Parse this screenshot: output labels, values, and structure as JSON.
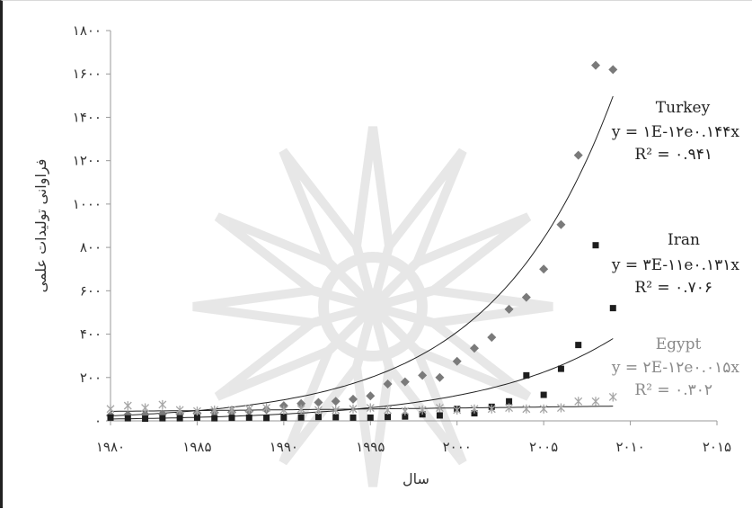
{
  "chart_data": {
    "type": "scatter",
    "xlabel": "سال",
    "ylabel": "فراوانی تولیدات علمی",
    "xlim": [
      1980,
      2015
    ],
    "ylim": [
      0,
      1800
    ],
    "x_ticks": [
      1980,
      1985,
      1990,
      1995,
      2000,
      2005,
      2010,
      2015
    ],
    "x_tick_labels": [
      "۱۹۸۰",
      "۱۹۸۵",
      "۱۹۹۰",
      "۱۹۹۵",
      "۲۰۰۰",
      "۲۰۰۵",
      "۲۰۱۰",
      "۲۰۱۵"
    ],
    "y_ticks": [
      0,
      200,
      400,
      600,
      800,
      1000,
      1200,
      1400,
      1600,
      1800
    ],
    "y_tick_labels": [
      "۰",
      "۲۰۰",
      "۴۰۰",
      "۶۰۰",
      "۸۰۰",
      "۱۰۰۰",
      "۱۲۰۰",
      "۱۴۰۰",
      "۱۶۰۰",
      "۱۸۰۰"
    ],
    "grid": false,
    "series": [
      {
        "name": "Turkey",
        "marker": "diamond",
        "color": "#7a7a7a",
        "x": [
          1980,
          1981,
          1982,
          1983,
          1984,
          1985,
          1986,
          1987,
          1988,
          1989,
          1990,
          1991,
          1992,
          1993,
          1994,
          1995,
          1996,
          1997,
          1998,
          1999,
          2000,
          2001,
          2002,
          2003,
          2004,
          2005,
          2006,
          2007,
          2008,
          2009
        ],
        "y": [
          25,
          28,
          30,
          32,
          33,
          35,
          38,
          40,
          45,
          52,
          70,
          80,
          85,
          90,
          100,
          115,
          170,
          180,
          210,
          200,
          275,
          335,
          385,
          515,
          570,
          700,
          905,
          1225,
          1640,
          1620
        ],
        "trend": {
          "a": 1e-12,
          "b": 0.144
        },
        "equation": "y = ۱E-۱۲e۰.۱۴۴x",
        "r2": "R² = ۰.۹۴۱"
      },
      {
        "name": "Iran",
        "marker": "square",
        "color": "#1e1e1e",
        "x": [
          1980,
          1981,
          1982,
          1983,
          1984,
          1985,
          1986,
          1987,
          1988,
          1989,
          1990,
          1991,
          1992,
          1993,
          1994,
          1995,
          1996,
          1997,
          1998,
          1999,
          2000,
          2001,
          2002,
          2003,
          2004,
          2005,
          2006,
          2007,
          2008,
          2009
        ],
        "y": [
          15,
          12,
          10,
          12,
          12,
          15,
          12,
          14,
          15,
          13,
          15,
          16,
          18,
          17,
          15,
          15,
          18,
          20,
          30,
          25,
          55,
          35,
          65,
          90,
          210,
          120,
          240,
          350,
          810,
          520
        ],
        "trend": {
          "a": 3e-11,
          "b": 0.131
        },
        "equation": "y = ۳E-۱۱e۰.۱۳۱x",
        "r2": "R² = ۰.۷۰۶"
      },
      {
        "name": "Egypt",
        "marker": "star",
        "color": "#a6a6a6",
        "x": [
          1980,
          1981,
          1982,
          1983,
          1984,
          1985,
          1986,
          1987,
          1988,
          1989,
          1990,
          1991,
          1992,
          1993,
          1994,
          1995,
          1996,
          1997,
          1998,
          1999,
          2000,
          2001,
          2002,
          2003,
          2004,
          2005,
          2006,
          2007,
          2008,
          2009
        ],
        "y": [
          55,
          70,
          60,
          75,
          50,
          45,
          50,
          50,
          55,
          60,
          50,
          55,
          50,
          50,
          55,
          60,
          50,
          45,
          50,
          60,
          50,
          55,
          55,
          60,
          55,
          55,
          60,
          90,
          90,
          110
        ],
        "trend": {
          "a": 2e-12,
          "b": 0.015
        },
        "equation": "y = ۲E-۱۲e۰.۰۱۵x",
        "r2": "R² = ۰.۳۰۲"
      }
    ]
  }
}
